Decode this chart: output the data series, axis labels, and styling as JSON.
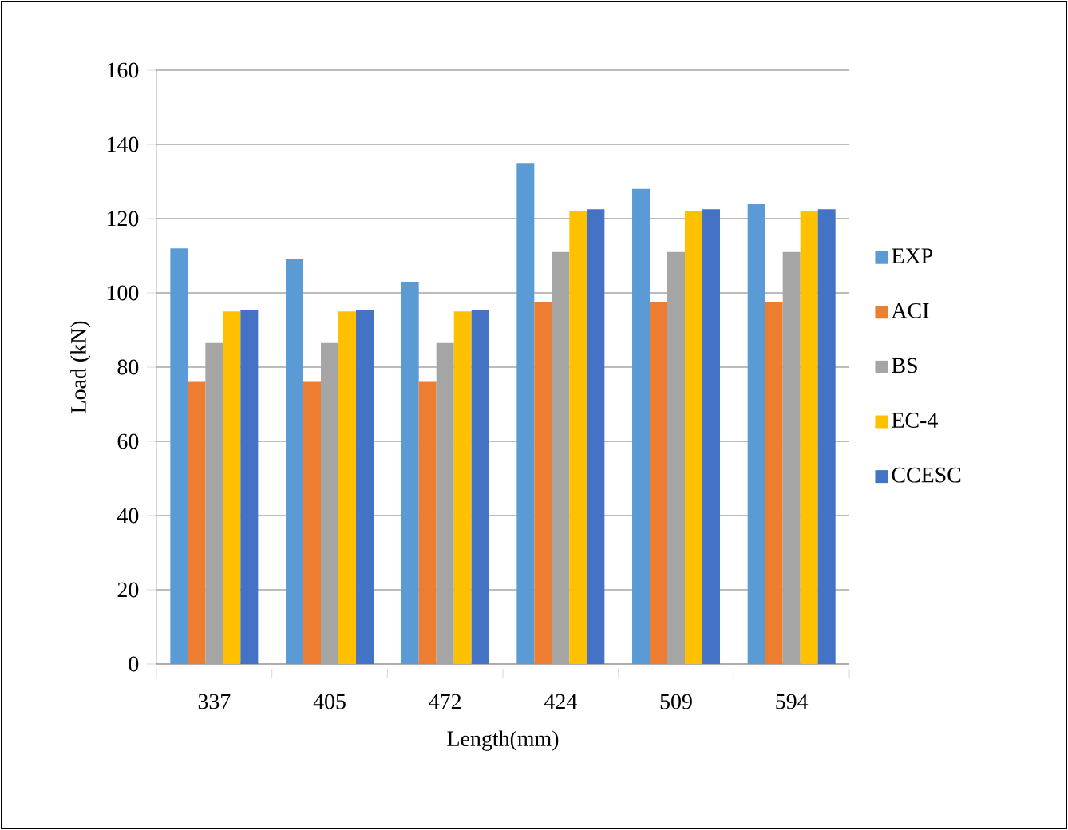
{
  "chart_data": {
    "type": "bar",
    "xlabel": "Length(mm)",
    "ylabel": "Load (kN)",
    "categories": [
      "337",
      "405",
      "472",
      "424",
      "509",
      "594"
    ],
    "series": [
      {
        "name": "EXP",
        "color": "#5b9bd5",
        "values": [
          112,
          109,
          103,
          135,
          128,
          124
        ]
      },
      {
        "name": "ACI",
        "color": "#ed7d31",
        "values": [
          76,
          76,
          76,
          97.5,
          97.5,
          97.5
        ]
      },
      {
        "name": "BS",
        "color": "#a5a5a5",
        "values": [
          86.5,
          86.5,
          86.5,
          111,
          111,
          111
        ]
      },
      {
        "name": "EC-4",
        "color": "#ffc000",
        "values": [
          95,
          95,
          95,
          122,
          122,
          122
        ]
      },
      {
        "name": "CCESC",
        "color": "#4472c4",
        "values": [
          95.5,
          95.5,
          95.5,
          122.5,
          122.5,
          122.5
        ]
      }
    ],
    "ylim": [
      0,
      160
    ],
    "yticks": [
      0,
      20,
      40,
      60,
      80,
      100,
      120,
      140,
      160
    ],
    "grid": "y",
    "legend": "right"
  }
}
